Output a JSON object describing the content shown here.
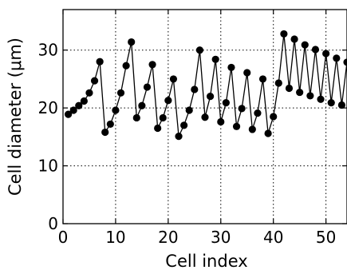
{
  "chart_data": {
    "type": "line",
    "title": "",
    "xlabel": "Cell index",
    "ylabel": "Cell diameter (μm)",
    "xlim": [
      0,
      54
    ],
    "ylim": [
      0,
      37
    ],
    "grid": true,
    "marker": "circle",
    "line_color": "#000000",
    "marker_color": "#000000",
    "x_ticks": [
      0,
      10,
      20,
      30,
      40,
      50
    ],
    "y_ticks": [
      0,
      10,
      20,
      30
    ],
    "x_tick_labels": [
      "0",
      "10",
      "20",
      "30",
      "40",
      "50"
    ],
    "y_tick_labels": [
      "0",
      "10",
      "20",
      "30"
    ],
    "x": [
      1,
      2,
      3,
      4,
      5,
      6,
      7,
      8,
      9,
      10,
      11,
      12,
      13,
      14,
      15,
      16,
      17,
      18,
      19,
      20,
      21,
      22,
      23,
      24,
      25,
      26,
      27,
      28,
      29,
      30,
      31,
      32,
      33,
      34,
      35,
      36,
      37,
      38,
      39,
      40,
      41,
      42,
      43,
      44,
      45,
      46,
      47,
      48,
      49,
      50,
      51,
      52,
      53,
      54
    ],
    "y": [
      18.9,
      19.6,
      20.4,
      21.2,
      22.6,
      24.7,
      28.0,
      15.8,
      17.2,
      19.6,
      22.6,
      27.3,
      31.4,
      18.3,
      20.4,
      23.6,
      27.5,
      16.5,
      18.3,
      21.3,
      25.0,
      15.1,
      17.0,
      19.6,
      23.2,
      30.0,
      18.4,
      22.0,
      28.4,
      17.6,
      20.9,
      27.0,
      16.8,
      19.9,
      26.1,
      16.3,
      19.1,
      25.0,
      15.6,
      18.5,
      24.3,
      32.8,
      23.4,
      31.9,
      22.7,
      30.9,
      22.1,
      30.1,
      21.5,
      29.4,
      20.9,
      28.6,
      20.5,
      27.9
    ]
  }
}
